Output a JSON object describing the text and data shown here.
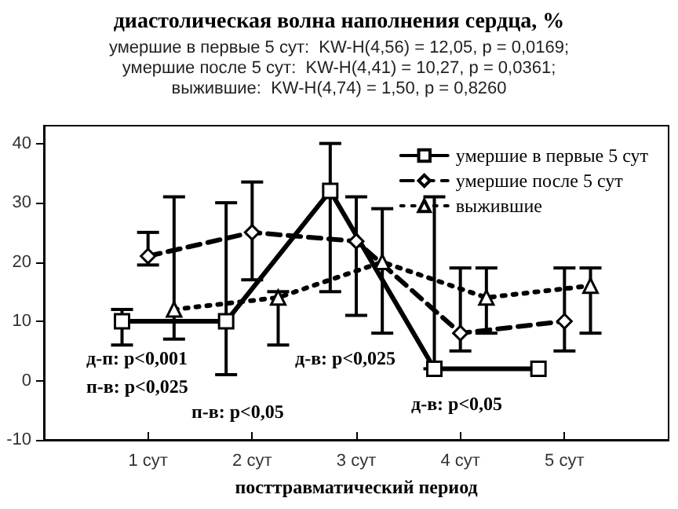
{
  "chart_data": {
    "type": "line",
    "title": "диастолическая волна наполнения сердца, %",
    "subtitle": "умершие в первые 5 сут:  KW-H(4,56) = 12,05, p = 0,0169;\nумершие после 5 сут:  KW-H(4,41) = 10,27, p = 0,0361;\nвыжившие:  KW-H(4,74) = 1,50, p = 0,8260",
    "xlabel": "посттравматический период",
    "xlim": [
      0,
      6
    ],
    "xticks": [
      {
        "value": 1,
        "label": "1 сут"
      },
      {
        "value": 2,
        "label": "2 сут"
      },
      {
        "value": 3,
        "label": "3 сут"
      },
      {
        "value": 4,
        "label": "4 сут"
      },
      {
        "value": 5,
        "label": "5 сут"
      }
    ],
    "ylim": [
      -10,
      43
    ],
    "yticks": [
      -10,
      0,
      10,
      20,
      30,
      40
    ],
    "grid": false,
    "legend": "top right",
    "series": [
      {
        "name": "умершие в первые 5 сут",
        "color": "#000000",
        "marker": "square",
        "line_style": "solid",
        "x": [
          0.75,
          1.75,
          2.75,
          3.75,
          4.75
        ],
        "values": [
          10,
          10,
          32,
          2,
          2
        ],
        "errors": [
          [
            6,
            12
          ],
          [
            1,
            30
          ],
          [
            15,
            40
          ],
          [
            2,
            31
          ],
          null
        ]
      },
      {
        "name": "умершие после 5 сут",
        "color": "#000000",
        "marker": "diamond",
        "line_style": "dashed",
        "x": [
          1,
          2,
          3,
          4,
          5
        ],
        "values": [
          21,
          25,
          23.5,
          8,
          10
        ],
        "errors": [
          [
            19.5,
            25
          ],
          [
            17,
            33.5
          ],
          [
            11,
            31
          ],
          [
            5,
            19
          ],
          [
            5,
            19
          ]
        ]
      },
      {
        "name": "выжившие",
        "color": "#000000",
        "marker": "triangle",
        "line_style": "dotted",
        "x": [
          1.25,
          2.25,
          3.25,
          4.25,
          5.25
        ],
        "values": [
          12,
          14,
          20,
          14,
          16
        ],
        "errors": [
          [
            7,
            31
          ],
          [
            6,
            15
          ],
          [
            8,
            29
          ],
          [
            8,
            19
          ],
          [
            8,
            19
          ]
        ]
      }
    ],
    "annotations": [
      "д-п: p<0,001",
      "п-в: p<0,025",
      "п-в: p<0,05",
      "д-в: p<0,025",
      "д-в: p<0,05"
    ]
  }
}
